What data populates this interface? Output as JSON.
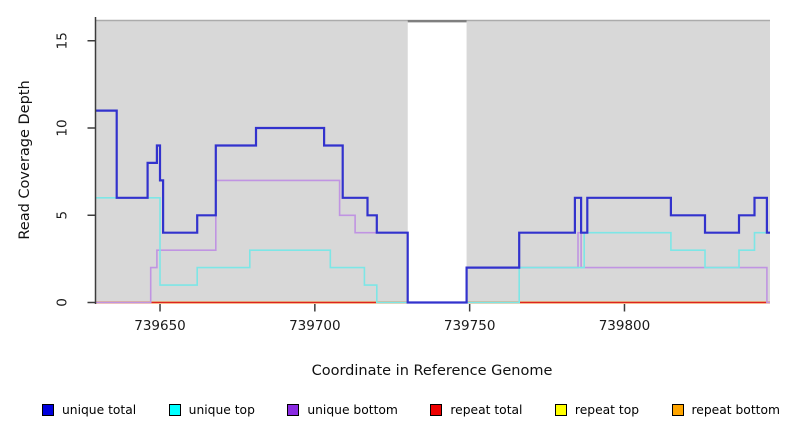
{
  "page": {
    "background": "#ffffff"
  },
  "chart_data": {
    "type": "line",
    "subtype": "step-coverage",
    "title": "",
    "xlabel": "Coordinate in Reference Genome",
    "ylabel": "Read Coverage Depth",
    "xlim": [
      739629,
      739847
    ],
    "ylim": [
      0,
      16.3
    ],
    "x_ticks": [
      739650,
      739700,
      739750,
      739800
    ],
    "y_ticks": [
      0,
      5,
      10,
      15
    ],
    "grid": false,
    "legend_position": "bottom",
    "panel_color": "#d8d8d8",
    "panel_top_edge_color": "#ababab",
    "gap_top_line_color": "#7f7f7f",
    "axis_color": "#3c3c3c",
    "background_panels": [
      [
        739629,
        739730
      ],
      [
        739749,
        739847
      ]
    ],
    "coverage_gap": [
      739730,
      739749
    ],
    "series": [
      {
        "name": "unique total",
        "color": "#3232cd",
        "legend_color": "#0000dd",
        "width": 2.2,
        "steps": [
          [
            739629,
            11
          ],
          [
            739636,
            6
          ],
          [
            739646,
            8
          ],
          [
            739649,
            9
          ],
          [
            739650,
            7
          ],
          [
            739651,
            4
          ],
          [
            739662,
            5
          ],
          [
            739668,
            9
          ],
          [
            739681,
            10
          ],
          [
            739703,
            9
          ],
          [
            739709,
            6
          ],
          [
            739717,
            5
          ],
          [
            739720,
            4
          ],
          [
            739730,
            0
          ],
          [
            739749,
            2
          ],
          [
            739766,
            4
          ],
          [
            739784,
            6
          ],
          [
            739786,
            4
          ],
          [
            739788,
            6
          ],
          [
            739815,
            5
          ],
          [
            739826,
            4
          ],
          [
            739837,
            5
          ],
          [
            739842,
            6
          ],
          [
            739846,
            4
          ]
        ]
      },
      {
        "name": "unique top",
        "color": "#7de6e6",
        "legend_color": "#00ffff",
        "width": 1.6,
        "steps": [
          [
            739629,
            6
          ],
          [
            739650,
            1
          ],
          [
            739662,
            2
          ],
          [
            739679,
            3
          ],
          [
            739705,
            2
          ],
          [
            739716,
            1
          ],
          [
            739720,
            0
          ],
          [
            739766,
            2
          ],
          [
            739787,
            4
          ],
          [
            739815,
            3
          ],
          [
            739826,
            2
          ],
          [
            739837,
            3
          ],
          [
            739842,
            4
          ]
        ]
      },
      {
        "name": "unique bottom",
        "color": "#c094e2",
        "legend_color": "#8a2be2",
        "width": 1.6,
        "steps": [
          [
            739629,
            0
          ],
          [
            739647,
            2
          ],
          [
            739649,
            3
          ],
          [
            739668,
            7
          ],
          [
            739708,
            5
          ],
          [
            739713,
            4
          ],
          [
            739730,
            0
          ],
          [
            739749,
            2
          ],
          [
            739785,
            4
          ],
          [
            739786,
            2
          ],
          [
            739846,
            0
          ]
        ]
      },
      {
        "name": "repeat total",
        "color": "#dd2222",
        "legend_color": "#ee0000",
        "width": 1.6,
        "steps": [
          [
            739629,
            0
          ]
        ]
      },
      {
        "name": "repeat top",
        "color": "#ffe800",
        "legend_color": "#ffff00",
        "width": 1.6,
        "steps": [
          [
            739629,
            0
          ]
        ]
      },
      {
        "name": "repeat bottom",
        "color": "#ffa01e",
        "legend_color": "#ffa500",
        "width": 2,
        "steps": [
          [
            739629,
            0
          ]
        ]
      }
    ]
  }
}
